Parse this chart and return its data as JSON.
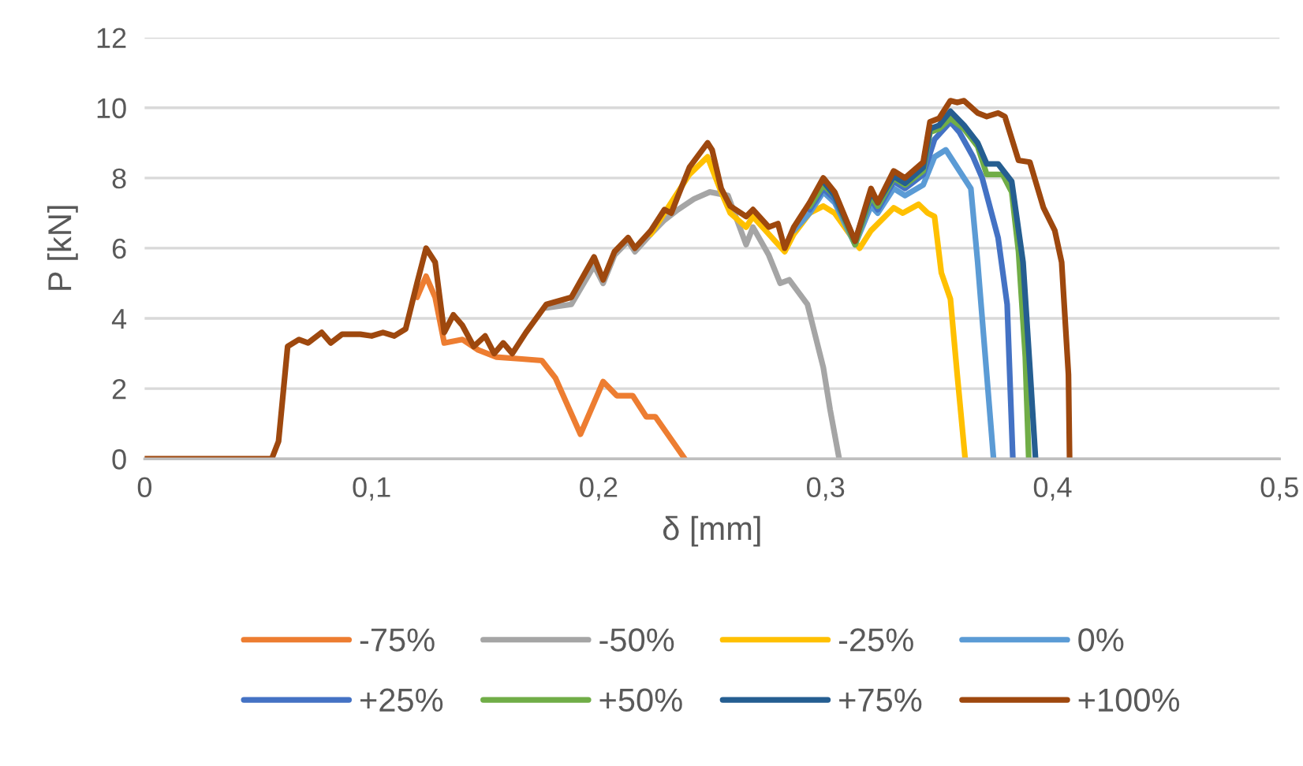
{
  "chart_data": {
    "type": "line",
    "xlabel": "δ [mm]",
    "ylabel": "P [kN]",
    "xlim": [
      0,
      0.5
    ],
    "ylim": [
      0,
      12
    ],
    "xticks": [
      0,
      {
        "value": 0.1,
        "label": "0,1"
      },
      {
        "value": 0.2,
        "label": "0,2"
      },
      {
        "value": 0.3,
        "label": "0,3"
      },
      {
        "value": 0.4,
        "label": "0,4"
      },
      {
        "value": 0.5,
        "label": "0,5"
      }
    ],
    "yticks": [
      0,
      2,
      4,
      6,
      8,
      10,
      12
    ],
    "grid": "y",
    "legend": "bottom",
    "marker": "none",
    "line_style": "solid",
    "series": [
      {
        "name": "-75%",
        "color": "#ed7d31",
        "x": [
          0.12,
          0.124,
          0.128,
          0.132,
          0.14,
          0.147,
          0.155,
          0.165,
          0.175,
          0.181,
          0.192,
          0.202,
          0.208,
          0.215,
          0.221,
          0.225,
          0.238
        ],
        "values": [
          4.6,
          5.2,
          4.6,
          3.3,
          3.4,
          3.1,
          2.9,
          2.85,
          2.8,
          2.3,
          0.7,
          2.2,
          1.8,
          1.8,
          1.2,
          1.2,
          0
        ]
      },
      {
        "name": "-50%",
        "color": "#a5a5a5",
        "x": [
          0.177,
          0.188,
          0.198,
          0.202,
          0.207,
          0.213,
          0.216,
          0.223,
          0.229,
          0.235,
          0.242,
          0.249,
          0.257,
          0.265,
          0.268,
          0.275,
          0.28,
          0.284,
          0.292,
          0.299,
          0.302,
          0.306
        ],
        "values": [
          4.3,
          4.4,
          5.5,
          5.0,
          5.8,
          6.2,
          5.9,
          6.4,
          6.8,
          7.1,
          7.4,
          7.6,
          7.5,
          6.1,
          6.6,
          5.8,
          5.0,
          5.1,
          4.4,
          2.6,
          1.4,
          0
        ]
      },
      {
        "name": "-25%",
        "color": "#ffc000",
        "x": [
          0.223,
          0.229,
          0.24,
          0.248,
          0.254,
          0.258,
          0.265,
          0.268,
          0.275,
          0.282,
          0.286,
          0.293,
          0.299,
          0.304,
          0.315,
          0.32,
          0.33,
          0.334,
          0.341,
          0.345,
          0.348,
          0.351,
          0.355,
          0.358,
          0.3615
        ],
        "values": [
          6.4,
          7.0,
          8.1,
          8.6,
          7.6,
          7.0,
          6.6,
          6.9,
          6.4,
          5.9,
          6.4,
          7.0,
          7.2,
          7.0,
          6.0,
          6.5,
          7.15,
          7.0,
          7.25,
          7.0,
          6.9,
          5.3,
          4.55,
          2.4,
          0
        ]
      },
      {
        "name": "0%",
        "color": "#5b9bd5",
        "x": [
          0.286,
          0.293,
          0.299,
          0.304,
          0.313,
          0.32,
          0.323,
          0.33,
          0.335,
          0.343,
          0.348,
          0.353,
          0.359,
          0.364,
          0.367,
          0.371,
          0.374
        ],
        "values": [
          6.5,
          7.0,
          7.6,
          7.3,
          6.1,
          7.2,
          7.0,
          7.7,
          7.5,
          7.8,
          8.6,
          8.8,
          8.2,
          7.7,
          5.6,
          2.4,
          0
        ]
      },
      {
        "name": "+25%",
        "color": "#4472c4",
        "x": [
          0.293,
          0.299,
          0.304,
          0.313,
          0.32,
          0.323,
          0.33,
          0.335,
          0.343,
          0.348,
          0.355,
          0.359,
          0.365,
          0.369,
          0.376,
          0.38,
          0.3825
        ],
        "values": [
          7.1,
          7.7,
          7.4,
          6.2,
          7.4,
          7.1,
          7.9,
          7.7,
          8.1,
          9.1,
          9.6,
          9.3,
          8.6,
          8.0,
          6.3,
          4.4,
          0
        ]
      },
      {
        "name": "+50%",
        "color": "#70ad47",
        "x": [
          0.293,
          0.299,
          0.304,
          0.313,
          0.32,
          0.323,
          0.33,
          0.335,
          0.343,
          0.346,
          0.35,
          0.355,
          0.361,
          0.367,
          0.371,
          0.378,
          0.382,
          0.385,
          0.388,
          0.3895
        ],
        "values": [
          7.2,
          7.8,
          7.5,
          6.1,
          7.5,
          7.2,
          8.0,
          7.8,
          8.2,
          9.3,
          9.4,
          9.7,
          9.4,
          8.9,
          8.1,
          8.1,
          7.6,
          5.9,
          2.9,
          0
        ]
      },
      {
        "name": "+75%",
        "color": "#255e91",
        "x": [
          0.299,
          0.304,
          0.313,
          0.32,
          0.323,
          0.33,
          0.335,
          0.343,
          0.346,
          0.35,
          0.355,
          0.361,
          0.367,
          0.371,
          0.376,
          0.382,
          0.387,
          0.39,
          0.3925
        ],
        "values": [
          7.9,
          7.5,
          6.2,
          7.6,
          7.3,
          8.05,
          7.85,
          8.3,
          9.4,
          9.5,
          9.9,
          9.5,
          9.0,
          8.4,
          8.4,
          7.9,
          5.6,
          2.6,
          0
        ]
      },
      {
        "name": "+100%",
        "color": "#9e480e",
        "x": [
          0,
          0.056,
          0.059,
          0.063,
          0.068,
          0.072,
          0.078,
          0.082,
          0.087,
          0.095,
          0.1,
          0.105,
          0.11,
          0.115,
          0.12,
          0.124,
          0.128,
          0.132,
          0.136,
          0.14,
          0.145,
          0.15,
          0.154,
          0.158,
          0.162,
          0.168,
          0.177,
          0.188,
          0.198,
          0.202,
          0.207,
          0.213,
          0.216,
          0.223,
          0.229,
          0.232,
          0.24,
          0.248,
          0.25,
          0.254,
          0.258,
          0.265,
          0.268,
          0.275,
          0.279,
          0.282,
          0.286,
          0.293,
          0.299,
          0.304,
          0.313,
          0.32,
          0.323,
          0.33,
          0.335,
          0.343,
          0.346,
          0.35,
          0.355,
          0.358,
          0.361,
          0.367,
          0.371,
          0.376,
          0.379,
          0.385,
          0.39,
          0.396,
          0.401,
          0.404,
          0.407,
          0.4075
        ],
        "values": [
          0,
          0,
          0.5,
          3.2,
          3.4,
          3.3,
          3.6,
          3.3,
          3.55,
          3.55,
          3.5,
          3.6,
          3.5,
          3.7,
          5.0,
          6.0,
          5.6,
          3.6,
          4.1,
          3.8,
          3.2,
          3.5,
          3.0,
          3.3,
          3.0,
          3.6,
          4.4,
          4.6,
          5.75,
          5.1,
          5.9,
          6.3,
          6.0,
          6.5,
          7.1,
          7.0,
          8.3,
          9.0,
          8.8,
          7.7,
          7.2,
          6.9,
          7.1,
          6.6,
          6.7,
          6.0,
          6.6,
          7.3,
          8.0,
          7.6,
          6.2,
          7.7,
          7.3,
          8.2,
          8.0,
          8.45,
          9.6,
          9.7,
          10.2,
          10.15,
          10.2,
          9.85,
          9.75,
          9.85,
          9.75,
          8.5,
          8.45,
          7.15,
          6.5,
          5.6,
          2.4,
          0
        ]
      }
    ]
  }
}
